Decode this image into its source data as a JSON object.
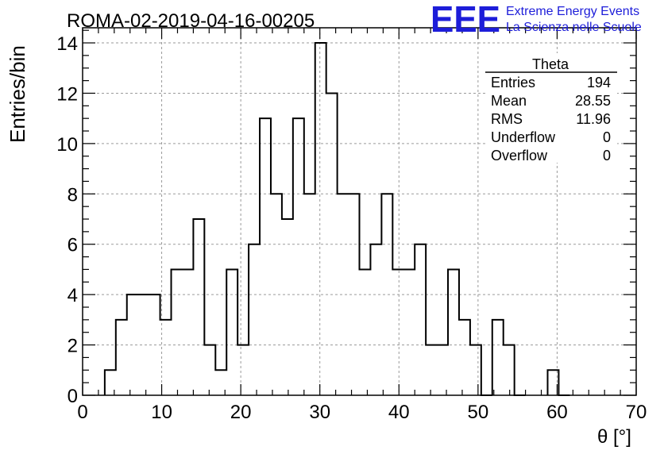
{
  "header": {
    "run_title": "ROMA-02-2019-04-16-00205",
    "logo_text": "EEE",
    "logo_line1": "Extreme Energy Events",
    "logo_line2": "La Scienza nelle Scuole",
    "logo_color": "#1d1dd9"
  },
  "stats": {
    "title": "Theta",
    "rows": [
      {
        "label": "Entries",
        "value": "194"
      },
      {
        "label": "Mean",
        "value": "28.55"
      },
      {
        "label": "RMS",
        "value": "11.96"
      },
      {
        "label": "Underflow",
        "value": "0"
      },
      {
        "label": "Overflow",
        "value": "0"
      }
    ]
  },
  "chart_data": {
    "type": "histogram",
    "xlabel": "θ [°]",
    "ylabel": "Entries/bin",
    "xlim": [
      0,
      70
    ],
    "ylim": [
      0,
      14.6
    ],
    "grid": true,
    "xticks": [
      0,
      10,
      20,
      30,
      40,
      50,
      60,
      70
    ],
    "yticks": [
      0,
      2,
      4,
      6,
      8,
      10,
      12,
      14
    ],
    "bin_width": 1.4,
    "bin_start": 0,
    "values": [
      0,
      0,
      1,
      3,
      4,
      4,
      4,
      3,
      5,
      5,
      7,
      2,
      1,
      5,
      2,
      6,
      11,
      8,
      7,
      11,
      8,
      14,
      12,
      8,
      8,
      5,
      6,
      8,
      5,
      5,
      6,
      2,
      2,
      5,
      3,
      2,
      0,
      3,
      2,
      0,
      0,
      0,
      1,
      0,
      0,
      0,
      0,
      0,
      0,
      0
    ]
  }
}
